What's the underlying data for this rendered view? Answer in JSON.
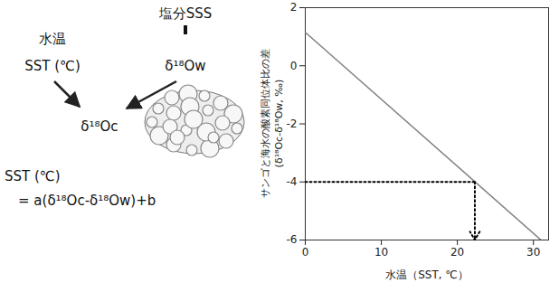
{
  "chart_data": {
    "type": "line",
    "x_label": "水温（SST, ℃）",
    "y_label": [
      "サンゴと海水の酸素同位体比の差",
      "(δ¹⁸Oc-δ¹⁸Ow, ‰)"
    ],
    "x": [
      0,
      31
    ],
    "values": [
      1.15,
      -6.0
    ],
    "color": "#808080",
    "xlim": [
      0,
      32
    ],
    "xticks": [
      0,
      10,
      20,
      30
    ],
    "ylim": [
      -6,
      2
    ],
    "yticks": [
      -6,
      -4,
      -2,
      0,
      2
    ],
    "guide": {
      "x": 22.3,
      "y": -4,
      "color": "#000000",
      "line_style": "dotted"
    }
  },
  "diagram": {
    "salinity": "塩分SSS",
    "temperature": "水温",
    "sst": "SST (℃)",
    "d18ow": "δ¹⁸Ow",
    "d18oc": "δ¹⁸Oc",
    "formula_lhs": "SST (℃)",
    "formula_rhs": "= a(δ¹⁸Oc-δ¹⁸Ow)+b"
  }
}
